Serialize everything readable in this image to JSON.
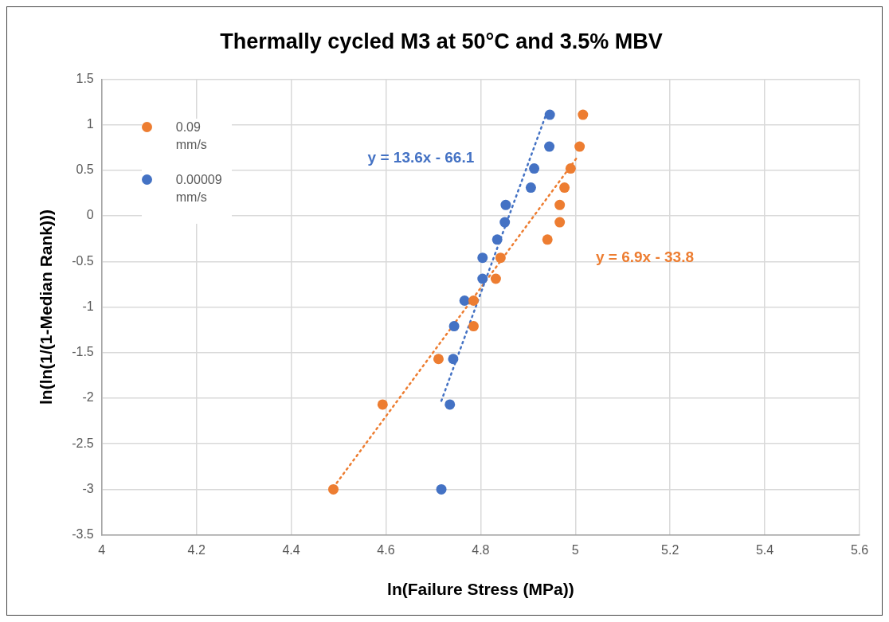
{
  "chart_data": {
    "type": "scatter",
    "title": "Thermally cycled M3 at 50°C and 3.5% MBV",
    "xlabel": "ln(Failure Stress (MPa))",
    "ylabel": "ln(ln(1/(1-Median Rank)))",
    "xlim": [
      4,
      5.6
    ],
    "xticks": [
      4,
      4.2,
      4.4,
      4.6,
      4.8,
      5,
      5.2,
      5.4,
      5.6
    ],
    "ylim": [
      -3.5,
      1.5
    ],
    "yticks": [
      -3.5,
      -3,
      -2.5,
      -2,
      -1.5,
      -1,
      -0.5,
      0,
      0.5,
      1,
      1.5
    ],
    "grid": true,
    "legend": "top left",
    "marker": "circle",
    "series": [
      {
        "name": "0.09 mm/s",
        "color": "#ed7d31",
        "x": [
          4.489,
          4.593,
          4.711,
          4.785,
          4.785,
          4.832,
          4.842,
          4.941,
          4.967,
          4.967,
          4.977,
          4.99,
          5.009,
          5.016
        ],
        "values": [
          -3.0,
          -2.07,
          -1.57,
          -1.21,
          -0.93,
          -0.69,
          -0.46,
          -0.26,
          -0.07,
          0.12,
          0.31,
          0.52,
          0.76,
          1.11
        ]
      },
      {
        "name": "0.00009 mm/s",
        "color": "#4472c4",
        "x": [
          4.717,
          4.735,
          4.742,
          4.744,
          4.766,
          4.804,
          4.804,
          4.835,
          4.851,
          4.853,
          4.906,
          4.913,
          4.945,
          4.946
        ],
        "values": [
          -3.0,
          -2.07,
          -1.57,
          -1.21,
          -0.93,
          -0.69,
          -0.46,
          -0.26,
          -0.07,
          0.12,
          0.31,
          0.52,
          0.76,
          1.11
        ]
      },
      {
        "type": "line",
        "color": "#4472c4",
        "line_style": "dotted",
        "marker": "none",
        "x": [
          4.717,
          4.938
        ],
        "values": [
          -2.03,
          1.11
        ]
      },
      {
        "type": "line",
        "color": "#ed7d31",
        "line_style": "dotted",
        "marker": "none",
        "x": [
          4.489,
          5.002
        ],
        "values": [
          -2.98,
          0.63
        ]
      }
    ],
    "annotations": [
      "y = 13.6x - 66.1",
      "y = 6.9x - 33.8"
    ]
  }
}
